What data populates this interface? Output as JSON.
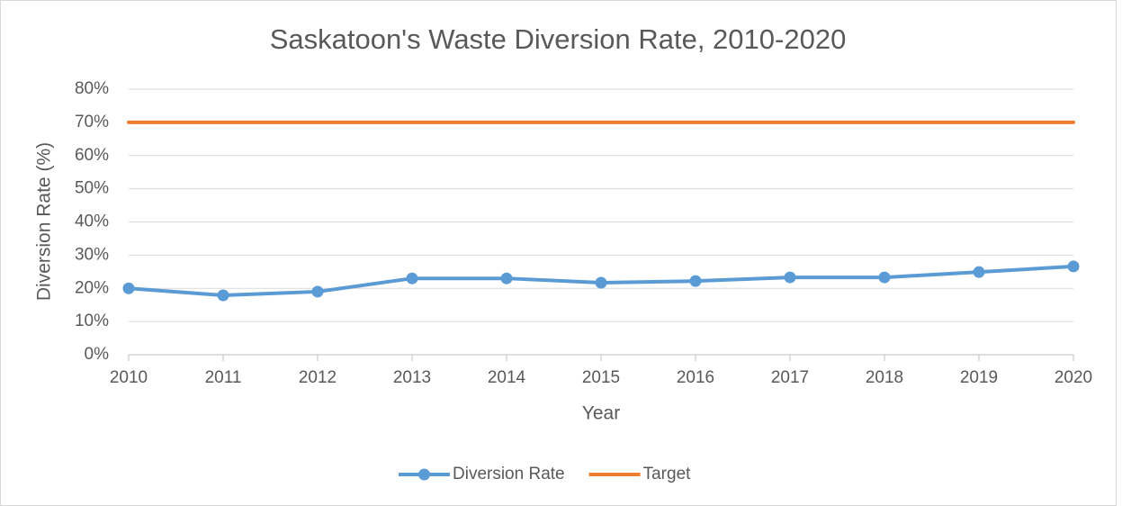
{
  "chart_data": {
    "type": "line",
    "title": "Saskatoon's Waste Diversion Rate, 2010-2020",
    "x_label": "Year",
    "y_label": "Diversion Rate (%)",
    "categories": [
      "2010",
      "2011",
      "2012",
      "2013",
      "2014",
      "2015",
      "2016",
      "2017",
      "2018",
      "2019",
      "2020"
    ],
    "series": [
      {
        "name": "Diversion Rate",
        "color": "#5b9bd5",
        "marker": true,
        "values": [
          20.0,
          17.9,
          19.0,
          23.0,
          23.0,
          21.7,
          22.2,
          23.3,
          23.3,
          24.9,
          26.6
        ]
      },
      {
        "name": "Target",
        "color": "#ed7d31",
        "marker": false,
        "values": [
          70,
          70,
          70,
          70,
          70,
          70,
          70,
          70,
          70,
          70,
          70
        ]
      }
    ],
    "ylim": [
      0,
      80
    ],
    "yticks": [
      {
        "value": 0,
        "label": "0%"
      },
      {
        "value": 10,
        "label": "10%"
      },
      {
        "value": 20,
        "label": "20%"
      },
      {
        "value": 30,
        "label": "30%"
      },
      {
        "value": 40,
        "label": "40%"
      },
      {
        "value": 50,
        "label": "50%"
      },
      {
        "value": 60,
        "label": "60%"
      },
      {
        "value": 70,
        "label": "70%"
      },
      {
        "value": 80,
        "label": "80%"
      }
    ],
    "grid": true,
    "legend": "bottom"
  }
}
